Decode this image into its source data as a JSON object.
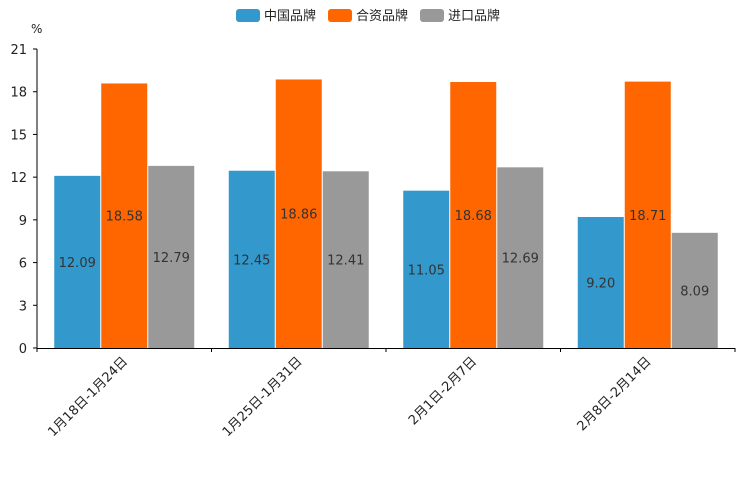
{
  "colors": {
    "china": "#3399cc",
    "jv": "#ff6600",
    "import": "#999999",
    "axis": "#000000"
  },
  "chart_data": {
    "type": "bar",
    "title": "",
    "xlabel": "",
    "ylabel": "%",
    "ylim": [
      0,
      21
    ],
    "yticks": [
      0,
      3,
      6,
      9,
      12,
      15,
      18,
      21
    ],
    "legend_position": "top-center",
    "grid": false,
    "categories": [
      "1月18日-1月24日",
      "1月25日-1月31日",
      "2月1日-2月7日",
      "2月8日-2月14日"
    ],
    "series": [
      {
        "name": "中国品牌",
        "color_key": "china",
        "values": [
          12.09,
          12.45,
          11.05,
          9.2
        ],
        "labels": [
          "12.09",
          "12.45",
          "11.05",
          "9.20"
        ]
      },
      {
        "name": "合资品牌",
        "color_key": "jv",
        "values": [
          18.58,
          18.86,
          18.68,
          18.71
        ],
        "labels": [
          "18.58",
          "18.86",
          "18.68",
          "18.71"
        ]
      },
      {
        "name": "进口品牌",
        "color_key": "import",
        "values": [
          12.79,
          12.41,
          12.69,
          8.09
        ],
        "labels": [
          "12.79",
          "12.41",
          "12.69",
          "8.09"
        ]
      }
    ]
  }
}
